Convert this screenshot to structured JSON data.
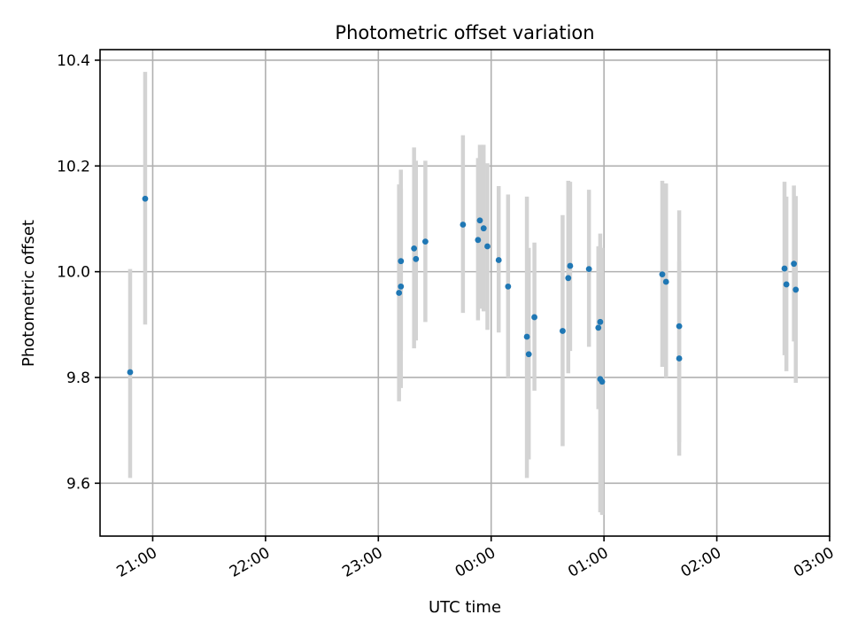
{
  "chart_data": {
    "type": "scatter",
    "title": "Photometric offset variation",
    "xlabel": "UTC time",
    "ylabel": "Photometric offset",
    "x_unit": "hours UTC",
    "xlim": [
      "20:32",
      "03:00"
    ],
    "ylim": [
      9.5,
      10.42
    ],
    "x_ticks": [
      "21:00",
      "22:00",
      "23:00",
      "00:00",
      "01:00",
      "02:00",
      "03:00"
    ],
    "y_ticks": [
      "9.6",
      "9.8",
      "10.0",
      "10.2",
      "10.4"
    ],
    "grid": true,
    "colors": {
      "point": "#1f77b4",
      "errorbar": "#d3d3d3"
    },
    "points": [
      {
        "x": "20:48",
        "y": 9.81,
        "yerr_low": 9.61,
        "yerr_high": 10.005
      },
      {
        "x": "20:56",
        "y": 10.138,
        "yerr_low": 9.9,
        "yerr_high": 10.378
      },
      {
        "x": "23:11",
        "y": 9.96,
        "yerr_low": 9.755,
        "yerr_high": 10.165
      },
      {
        "x": "23:12",
        "y": 9.972,
        "yerr_low": 9.78,
        "yerr_high": 10.158
      },
      {
        "x": "23:12",
        "y": 10.02,
        "yerr_low": 9.85,
        "yerr_high": 10.193
      },
      {
        "x": "23:19",
        "y": 10.044,
        "yerr_low": 9.855,
        "yerr_high": 10.235
      },
      {
        "x": "23:20",
        "y": 10.024,
        "yerr_low": 9.87,
        "yerr_high": 10.21
      },
      {
        "x": "23:25",
        "y": 10.057,
        "yerr_low": 9.905,
        "yerr_high": 10.21
      },
      {
        "x": "23:45",
        "y": 10.089,
        "yerr_low": 9.922,
        "yerr_high": 10.258
      },
      {
        "x": "23:53",
        "y": 10.06,
        "yerr_low": 9.908,
        "yerr_high": 10.215
      },
      {
        "x": "23:54",
        "y": 10.097,
        "yerr_low": 9.93,
        "yerr_high": 10.24
      },
      {
        "x": "23:56",
        "y": 10.082,
        "yerr_low": 9.925,
        "yerr_high": 10.24
      },
      {
        "x": "23:58",
        "y": 10.048,
        "yerr_low": 9.89,
        "yerr_high": 10.205
      },
      {
        "x": "00:04",
        "y": 10.022,
        "yerr_low": 9.885,
        "yerr_high": 10.162
      },
      {
        "x": "00:09",
        "y": 9.972,
        "yerr_low": 9.8,
        "yerr_high": 10.146
      },
      {
        "x": "00:19",
        "y": 9.877,
        "yerr_low": 9.61,
        "yerr_high": 10.142
      },
      {
        "x": "00:20",
        "y": 9.844,
        "yerr_low": 9.645,
        "yerr_high": 10.045
      },
      {
        "x": "00:23",
        "y": 9.914,
        "yerr_low": 9.775,
        "yerr_high": 10.055
      },
      {
        "x": "00:38",
        "y": 9.888,
        "yerr_low": 9.67,
        "yerr_high": 10.107
      },
      {
        "x": "00:41",
        "y": 9.988,
        "yerr_low": 9.808,
        "yerr_high": 10.172
      },
      {
        "x": "00:42",
        "y": 10.011,
        "yerr_low": 9.85,
        "yerr_high": 10.17
      },
      {
        "x": "00:52",
        "y": 10.005,
        "yerr_low": 9.858,
        "yerr_high": 10.155
      },
      {
        "x": "00:57",
        "y": 9.894,
        "yerr_low": 9.74,
        "yerr_high": 10.048
      },
      {
        "x": "00:58",
        "y": 9.905,
        "yerr_low": 9.74,
        "yerr_high": 10.072
      },
      {
        "x": "00:58",
        "y": 9.797,
        "yerr_low": 9.545,
        "yerr_high": 10.05
      },
      {
        "x": "00:59",
        "y": 9.792,
        "yerr_low": 9.54,
        "yerr_high": 10.045
      },
      {
        "x": "01:31",
        "y": 9.995,
        "yerr_low": 9.82,
        "yerr_high": 10.172
      },
      {
        "x": "01:33",
        "y": 9.981,
        "yerr_low": 9.8,
        "yerr_high": 10.167
      },
      {
        "x": "01:40",
        "y": 9.836,
        "yerr_low": 9.652,
        "yerr_high": 10.02
      },
      {
        "x": "01:40",
        "y": 9.897,
        "yerr_low": 9.678,
        "yerr_high": 10.116
      },
      {
        "x": "02:36",
        "y": 10.006,
        "yerr_low": 9.842,
        "yerr_high": 10.17
      },
      {
        "x": "02:37",
        "y": 9.976,
        "yerr_low": 9.812,
        "yerr_high": 10.142
      },
      {
        "x": "02:41",
        "y": 10.015,
        "yerr_low": 9.868,
        "yerr_high": 10.163
      },
      {
        "x": "02:42",
        "y": 9.966,
        "yerr_low": 9.79,
        "yerr_high": 10.143
      }
    ]
  }
}
